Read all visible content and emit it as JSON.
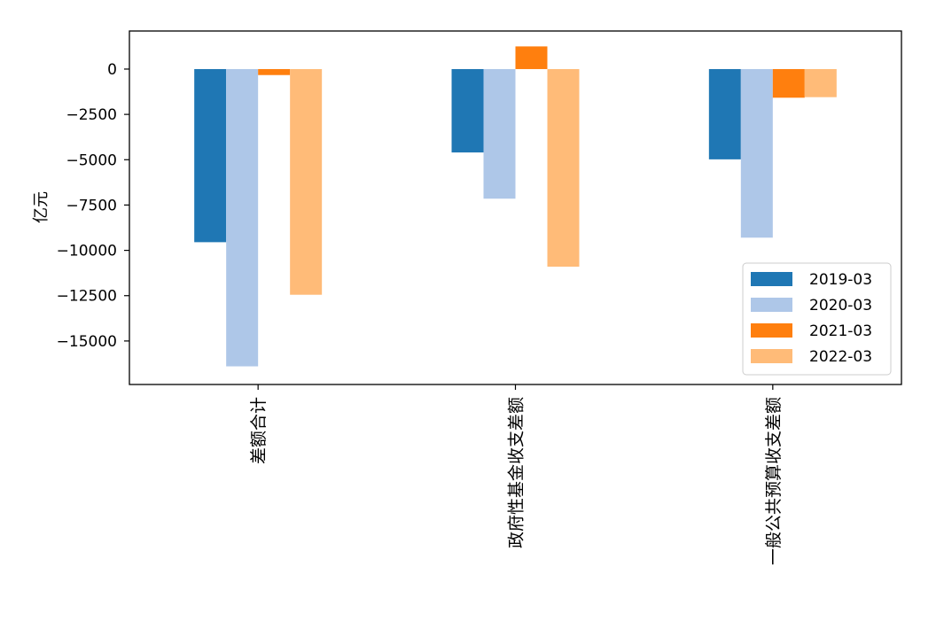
{
  "chart_data": {
    "type": "bar",
    "title": "",
    "xlabel": "",
    "ylabel": "亿元",
    "categories": [
      "差额合计",
      "政府性基金收支差额",
      "一般公共预算收支差额"
    ],
    "series": [
      {
        "name": "2019-03",
        "color": "#1f77b4",
        "values": [
          -9550,
          -4600,
          -4980
        ]
      },
      {
        "name": "2020-03",
        "color": "#aec7e8",
        "values": [
          -16400,
          -7150,
          -9300
        ]
      },
      {
        "name": "2021-03",
        "color": "#ff7f0e",
        "values": [
          -330,
          1250,
          -1580
        ]
      },
      {
        "name": "2022-03",
        "color": "#ffbb78",
        "values": [
          -12450,
          -10900,
          -1550
        ]
      }
    ],
    "ylim": [
      -17400,
      2100
    ],
    "yticks": [
      0,
      -2500,
      -5000,
      -7500,
      -10000,
      -12500,
      -15000
    ],
    "ytick_labels": [
      "0",
      "−2500",
      "−5000",
      "−7500",
      "−10000",
      "−12500",
      "−15000"
    ],
    "grid": false,
    "legend_position": "lower-right"
  }
}
